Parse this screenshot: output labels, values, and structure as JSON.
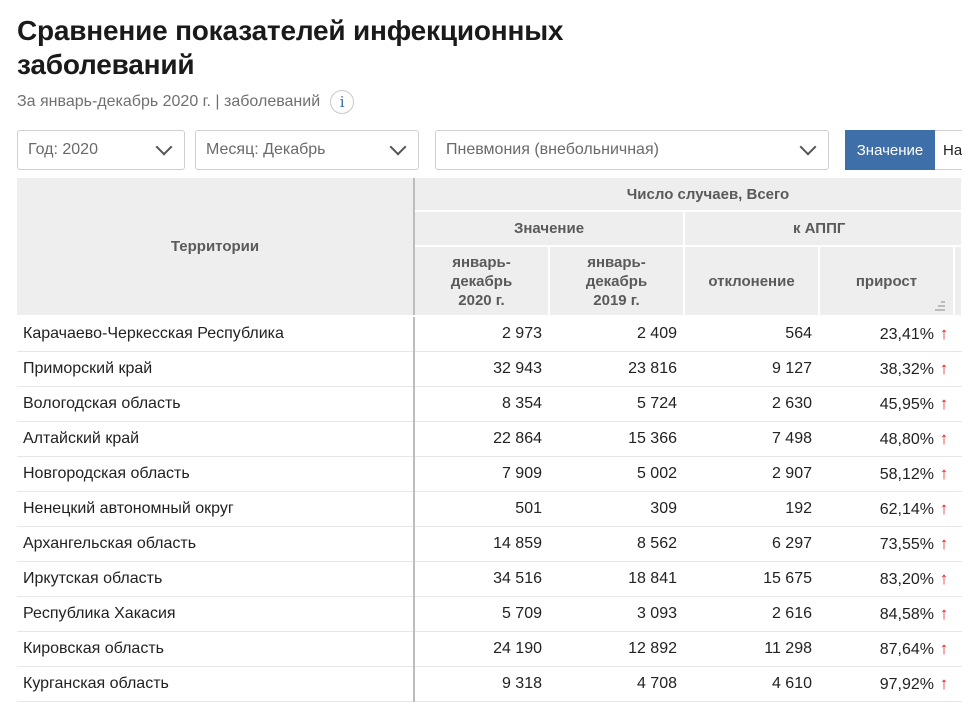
{
  "title": "Сравнение показателей инфекционных заболеваний",
  "subtitle": "За январь-декабрь 2020 г. | заболеваний",
  "info_glyph": "i",
  "filters": {
    "year": "Год: 2020",
    "month": "Месяц: Декабрь",
    "disease": "Пневмония (внебольничная)"
  },
  "toggle": {
    "active": "Значение",
    "inactive": "На"
  },
  "table": {
    "header_territory": "Территории",
    "header_group": "Число случаев, Всего",
    "header_value": "Значение",
    "header_appg": "к АППГ",
    "col_2020": "январь-декабрь 2020 г.",
    "col_2019": "январь-декабрь 2019 г.",
    "col_dev": "отклонение",
    "col_growth": "прирост",
    "rows": [
      {
        "name": "Карачаево-Черкесская Республика",
        "v2020": "2 973",
        "v2019": "2 409",
        "dev": "564",
        "growth": "23,41%"
      },
      {
        "name": "Приморский край",
        "v2020": "32 943",
        "v2019": "23 816",
        "dev": "9 127",
        "growth": "38,32%"
      },
      {
        "name": "Вологодская область",
        "v2020": "8 354",
        "v2019": "5 724",
        "dev": "2 630",
        "growth": "45,95%"
      },
      {
        "name": "Алтайский край",
        "v2020": "22 864",
        "v2019": "15 366",
        "dev": "7 498",
        "growth": "48,80%"
      },
      {
        "name": "Новгородская область",
        "v2020": "7 909",
        "v2019": "5 002",
        "dev": "2 907",
        "growth": "58,12%"
      },
      {
        "name": "Ненецкий автономный округ",
        "v2020": "501",
        "v2019": "309",
        "dev": "192",
        "growth": "62,14%"
      },
      {
        "name": "Архангельская область",
        "v2020": "14 859",
        "v2019": "8 562",
        "dev": "6 297",
        "growth": "73,55%"
      },
      {
        "name": "Иркутская область",
        "v2020": "34 516",
        "v2019": "18 841",
        "dev": "15 675",
        "growth": "83,20%"
      },
      {
        "name": "Республика Хакасия",
        "v2020": "5 709",
        "v2019": "3 093",
        "dev": "2 616",
        "growth": "84,58%"
      },
      {
        "name": "Кировская область",
        "v2020": "24 190",
        "v2019": "12 892",
        "dev": "11 298",
        "growth": "87,64%"
      },
      {
        "name": "Курганская область",
        "v2020": "9 318",
        "v2019": "4 708",
        "dev": "4 610",
        "growth": "97,92%"
      }
    ]
  },
  "icons": {
    "growth": "arrow-up-icon",
    "sort": "sort-icon",
    "dropdown": "chevron-down-icon",
    "info": "info-icon"
  },
  "colors": {
    "accent": "#3e6fa8",
    "growth_arrow": "#e01b1b",
    "header_bg": "#eeeeee"
  }
}
